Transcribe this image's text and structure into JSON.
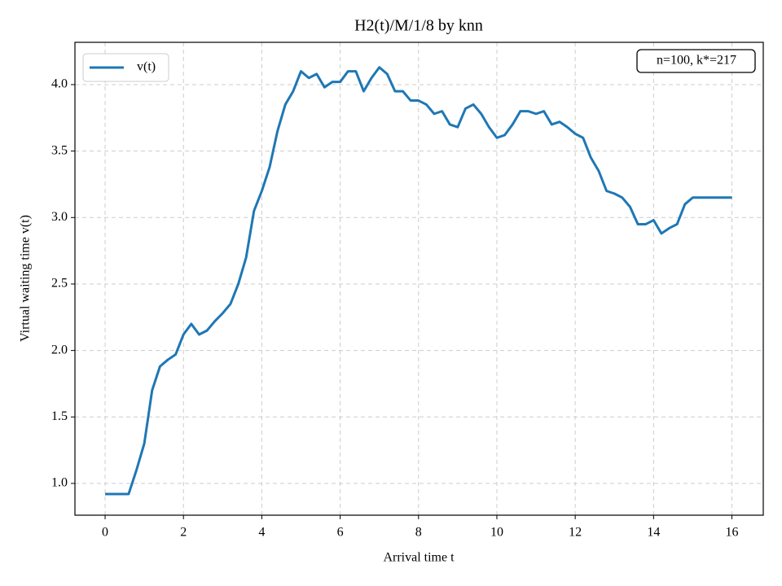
{
  "chart_data": {
    "type": "line",
    "title": "H2(t)/M/1/8 by knn",
    "xlabel": "Arrival time t",
    "ylabel": "Virtual waiting time v(t)",
    "annotation": "n=100, k*=217",
    "x": [
      0,
      0.2,
      0.4,
      0.6,
      0.8,
      1.0,
      1.2,
      1.4,
      1.6,
      1.8,
      2.0,
      2.2,
      2.4,
      2.6,
      2.8,
      3.0,
      3.2,
      3.4,
      3.6,
      3.8,
      4.0,
      4.2,
      4.4,
      4.6,
      4.8,
      5.0,
      5.2,
      5.4,
      5.6,
      5.8,
      6.0,
      6.2,
      6.4,
      6.6,
      6.8,
      7.0,
      7.2,
      7.4,
      7.6,
      7.8,
      8.0,
      8.2,
      8.4,
      8.6,
      8.8,
      9.0,
      9.2,
      9.4,
      9.6,
      9.8,
      10.0,
      10.2,
      10.4,
      10.6,
      10.8,
      11.0,
      11.2,
      11.4,
      11.6,
      11.8,
      12.0,
      12.2,
      12.4,
      12.6,
      12.8,
      13.0,
      13.2,
      13.4,
      13.6,
      13.8,
      14.0,
      14.2,
      14.4,
      14.6,
      14.8,
      15.0,
      15.2,
      15.6,
      16.0
    ],
    "series": [
      {
        "name": "v(t)",
        "color": "#1f77b4",
        "values": [
          0.92,
          0.92,
          0.92,
          0.92,
          1.1,
          1.3,
          1.7,
          1.88,
          1.93,
          1.97,
          2.12,
          2.2,
          2.12,
          2.15,
          2.22,
          2.28,
          2.35,
          2.5,
          2.7,
          3.05,
          3.2,
          3.38,
          3.65,
          3.85,
          3.95,
          4.1,
          4.05,
          4.08,
          3.98,
          4.02,
          4.02,
          4.1,
          4.1,
          3.95,
          4.05,
          4.13,
          4.08,
          3.95,
          3.95,
          3.88,
          3.88,
          3.85,
          3.78,
          3.8,
          3.7,
          3.68,
          3.82,
          3.85,
          3.78,
          3.68,
          3.6,
          3.62,
          3.7,
          3.8,
          3.8,
          3.78,
          3.8,
          3.7,
          3.72,
          3.68,
          3.63,
          3.6,
          3.45,
          3.35,
          3.2,
          3.18,
          3.15,
          3.08,
          2.95,
          2.95,
          2.98,
          2.88,
          2.92,
          2.95,
          3.1,
          3.15,
          3.15,
          3.15,
          3.15
        ]
      }
    ],
    "xlim": [
      -0.77,
      16.8
    ],
    "ylim": [
      0.761,
      4.318
    ],
    "xticks": [
      0,
      2,
      4,
      6,
      8,
      10,
      12,
      14,
      16
    ],
    "yticks": [
      {
        "value": 1,
        "label": "1.0"
      },
      {
        "value": 1.5,
        "label": "1.5"
      },
      {
        "value": 2,
        "label": "2.0"
      },
      {
        "value": 2.5,
        "label": "2.5"
      },
      {
        "value": 3,
        "label": "3.0"
      },
      {
        "value": 3.5,
        "label": "3.5"
      },
      {
        "value": 4,
        "label": "4.0"
      }
    ],
    "grid": true,
    "legend": "upper left"
  }
}
